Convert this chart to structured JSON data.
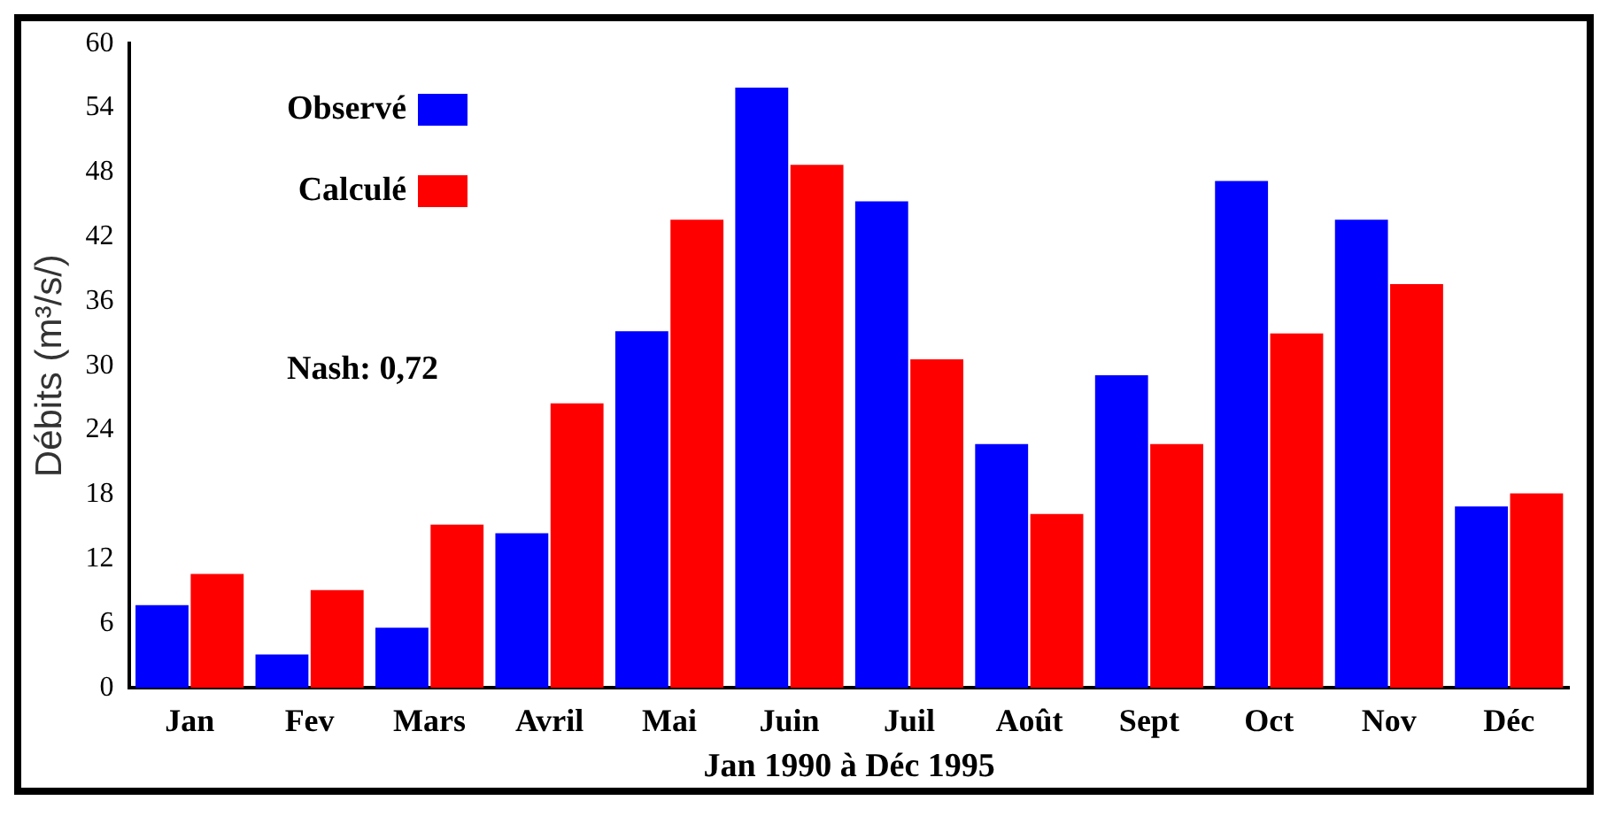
{
  "chart_data": {
    "type": "bar",
    "xlabel": "Jan 1990 à Déc 1995",
    "ylabel": "Débits (m³/s/)",
    "categories": [
      "Jan",
      "Fev",
      "Mars",
      "Avril",
      "Mai",
      "Juin",
      "Juil",
      "Août",
      "Sept",
      "Oct",
      "Nov",
      "Déc"
    ],
    "series": [
      {
        "name": "Observé",
        "color": "#0000ff",
        "values": [
          7.7,
          3.1,
          5.6,
          14.4,
          33.2,
          55.9,
          45.3,
          22.7,
          29.1,
          47.2,
          43.6,
          16.9
        ]
      },
      {
        "name": "Calculé",
        "color": "#ff0000",
        "values": [
          10.6,
          9.1,
          15.2,
          26.5,
          43.6,
          48.7,
          30.6,
          16.2,
          22.7,
          33.0,
          37.6,
          18.1
        ]
      }
    ],
    "ylim": [
      0,
      60
    ],
    "yticks": [
      0,
      6,
      12,
      18,
      24,
      30,
      36,
      42,
      48,
      54,
      60
    ],
    "grid": false,
    "legend": "top left",
    "annotations": [
      "Nash: 0,72"
    ]
  }
}
